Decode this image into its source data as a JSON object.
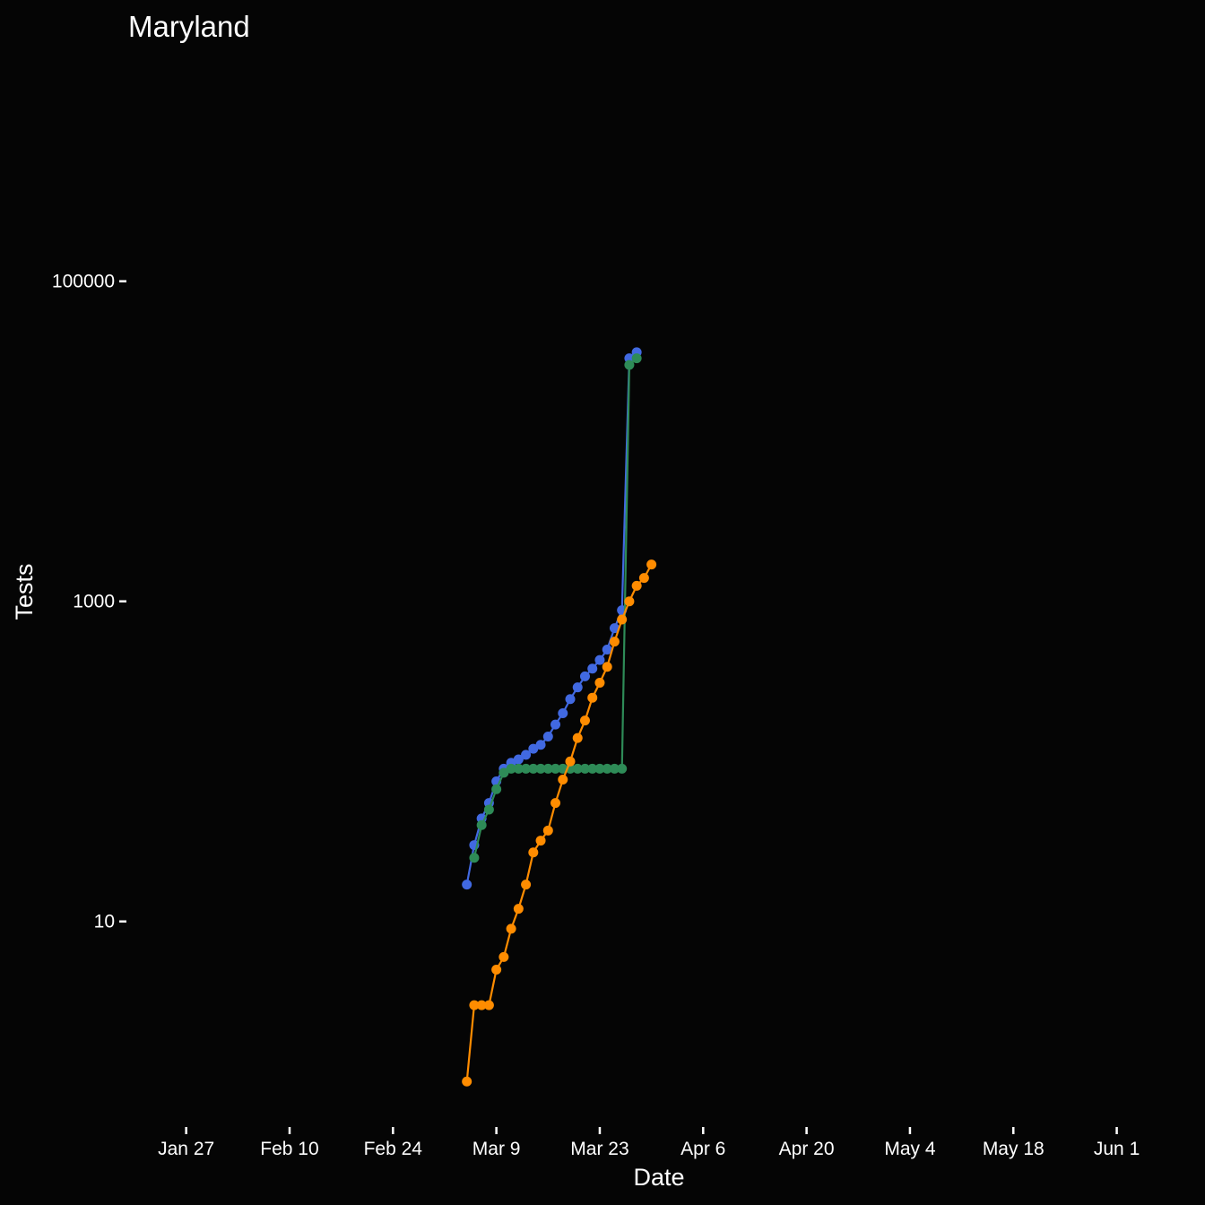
{
  "chart_data": {
    "type": "line",
    "title": "Maryland",
    "xlabel": "Date",
    "ylabel": "Tests",
    "x_scale": "date",
    "y_scale": "log10",
    "xlim": [
      "2020-01-20",
      "2020-06-07"
    ],
    "ylim": [
      0.5,
      3000000
    ],
    "x_ticks": [
      {
        "date": "2020-01-27",
        "label": "Jan 27"
      },
      {
        "date": "2020-02-10",
        "label": "Feb 10"
      },
      {
        "date": "2020-02-24",
        "label": "Feb 24"
      },
      {
        "date": "2020-03-09",
        "label": "Mar  9"
      },
      {
        "date": "2020-03-23",
        "label": "Mar 23"
      },
      {
        "date": "2020-04-06",
        "label": "Apr  6"
      },
      {
        "date": "2020-04-20",
        "label": "Apr 20"
      },
      {
        "date": "2020-05-04",
        "label": "May  4"
      },
      {
        "date": "2020-05-18",
        "label": "May 18"
      },
      {
        "date": "2020-06-01",
        "label": "Jun  1"
      }
    ],
    "y_ticks": [
      {
        "value": 10,
        "label": "10"
      },
      {
        "value": 1000,
        "label": "1000"
      },
      {
        "value": 100000,
        "label": "100000"
      }
    ],
    "grid": false,
    "legend": "none",
    "series": [
      {
        "color": "#4169e1",
        "x": [
          "2020-03-05",
          "2020-03-06",
          "2020-03-07",
          "2020-03-08",
          "2020-03-09",
          "2020-03-10",
          "2020-03-11",
          "2020-03-12",
          "2020-03-13",
          "2020-03-14",
          "2020-03-15",
          "2020-03-16",
          "2020-03-17",
          "2020-03-18",
          "2020-03-19",
          "2020-03-20",
          "2020-03-21",
          "2020-03-22",
          "2020-03-23",
          "2020-03-24",
          "2020-03-25",
          "2020-03-26",
          "2020-03-27",
          "2020-03-28"
        ],
        "y": [
          17,
          30,
          44,
          55,
          75,
          90,
          98,
          103,
          110,
          120,
          127,
          143,
          170,
          200,
          245,
          290,
          340,
          380,
          430,
          500,
          680,
          880,
          33000,
          36000
        ]
      },
      {
        "color": "#2e8b57",
        "x": [
          "2020-03-06",
          "2020-03-07",
          "2020-03-08",
          "2020-03-09",
          "2020-03-10",
          "2020-03-11",
          "2020-03-12",
          "2020-03-13",
          "2020-03-14",
          "2020-03-15",
          "2020-03-16",
          "2020-03-17",
          "2020-03-18",
          "2020-03-19",
          "2020-03-20",
          "2020-03-21",
          "2020-03-22",
          "2020-03-23",
          "2020-03-24",
          "2020-03-25",
          "2020-03-26",
          "2020-03-27",
          "2020-03-28"
        ],
        "y": [
          25,
          40,
          50,
          67,
          85,
          90,
          90,
          90,
          90,
          90,
          90,
          90,
          90,
          90,
          90,
          90,
          90,
          90,
          90,
          90,
          90,
          30000,
          33000
        ]
      },
      {
        "color": "#ff8c00",
        "x": [
          "2020-03-05",
          "2020-03-06",
          "2020-03-07",
          "2020-03-08",
          "2020-03-09",
          "2020-03-10",
          "2020-03-11",
          "2020-03-12",
          "2020-03-13",
          "2020-03-14",
          "2020-03-15",
          "2020-03-16",
          "2020-03-17",
          "2020-03-18",
          "2020-03-19",
          "2020-03-20",
          "2020-03-21",
          "2020-03-22",
          "2020-03-23",
          "2020-03-24",
          "2020-03-25",
          "2020-03-26",
          "2020-03-27",
          "2020-03-28",
          "2020-03-29",
          "2020-03-30"
        ],
        "y": [
          1,
          3,
          3,
          3,
          5,
          6,
          9,
          12,
          17,
          27,
          32,
          37,
          55,
          77,
          100,
          140,
          180,
          250,
          310,
          390,
          560,
          770,
          1000,
          1250,
          1400,
          1700
        ]
      }
    ]
  }
}
